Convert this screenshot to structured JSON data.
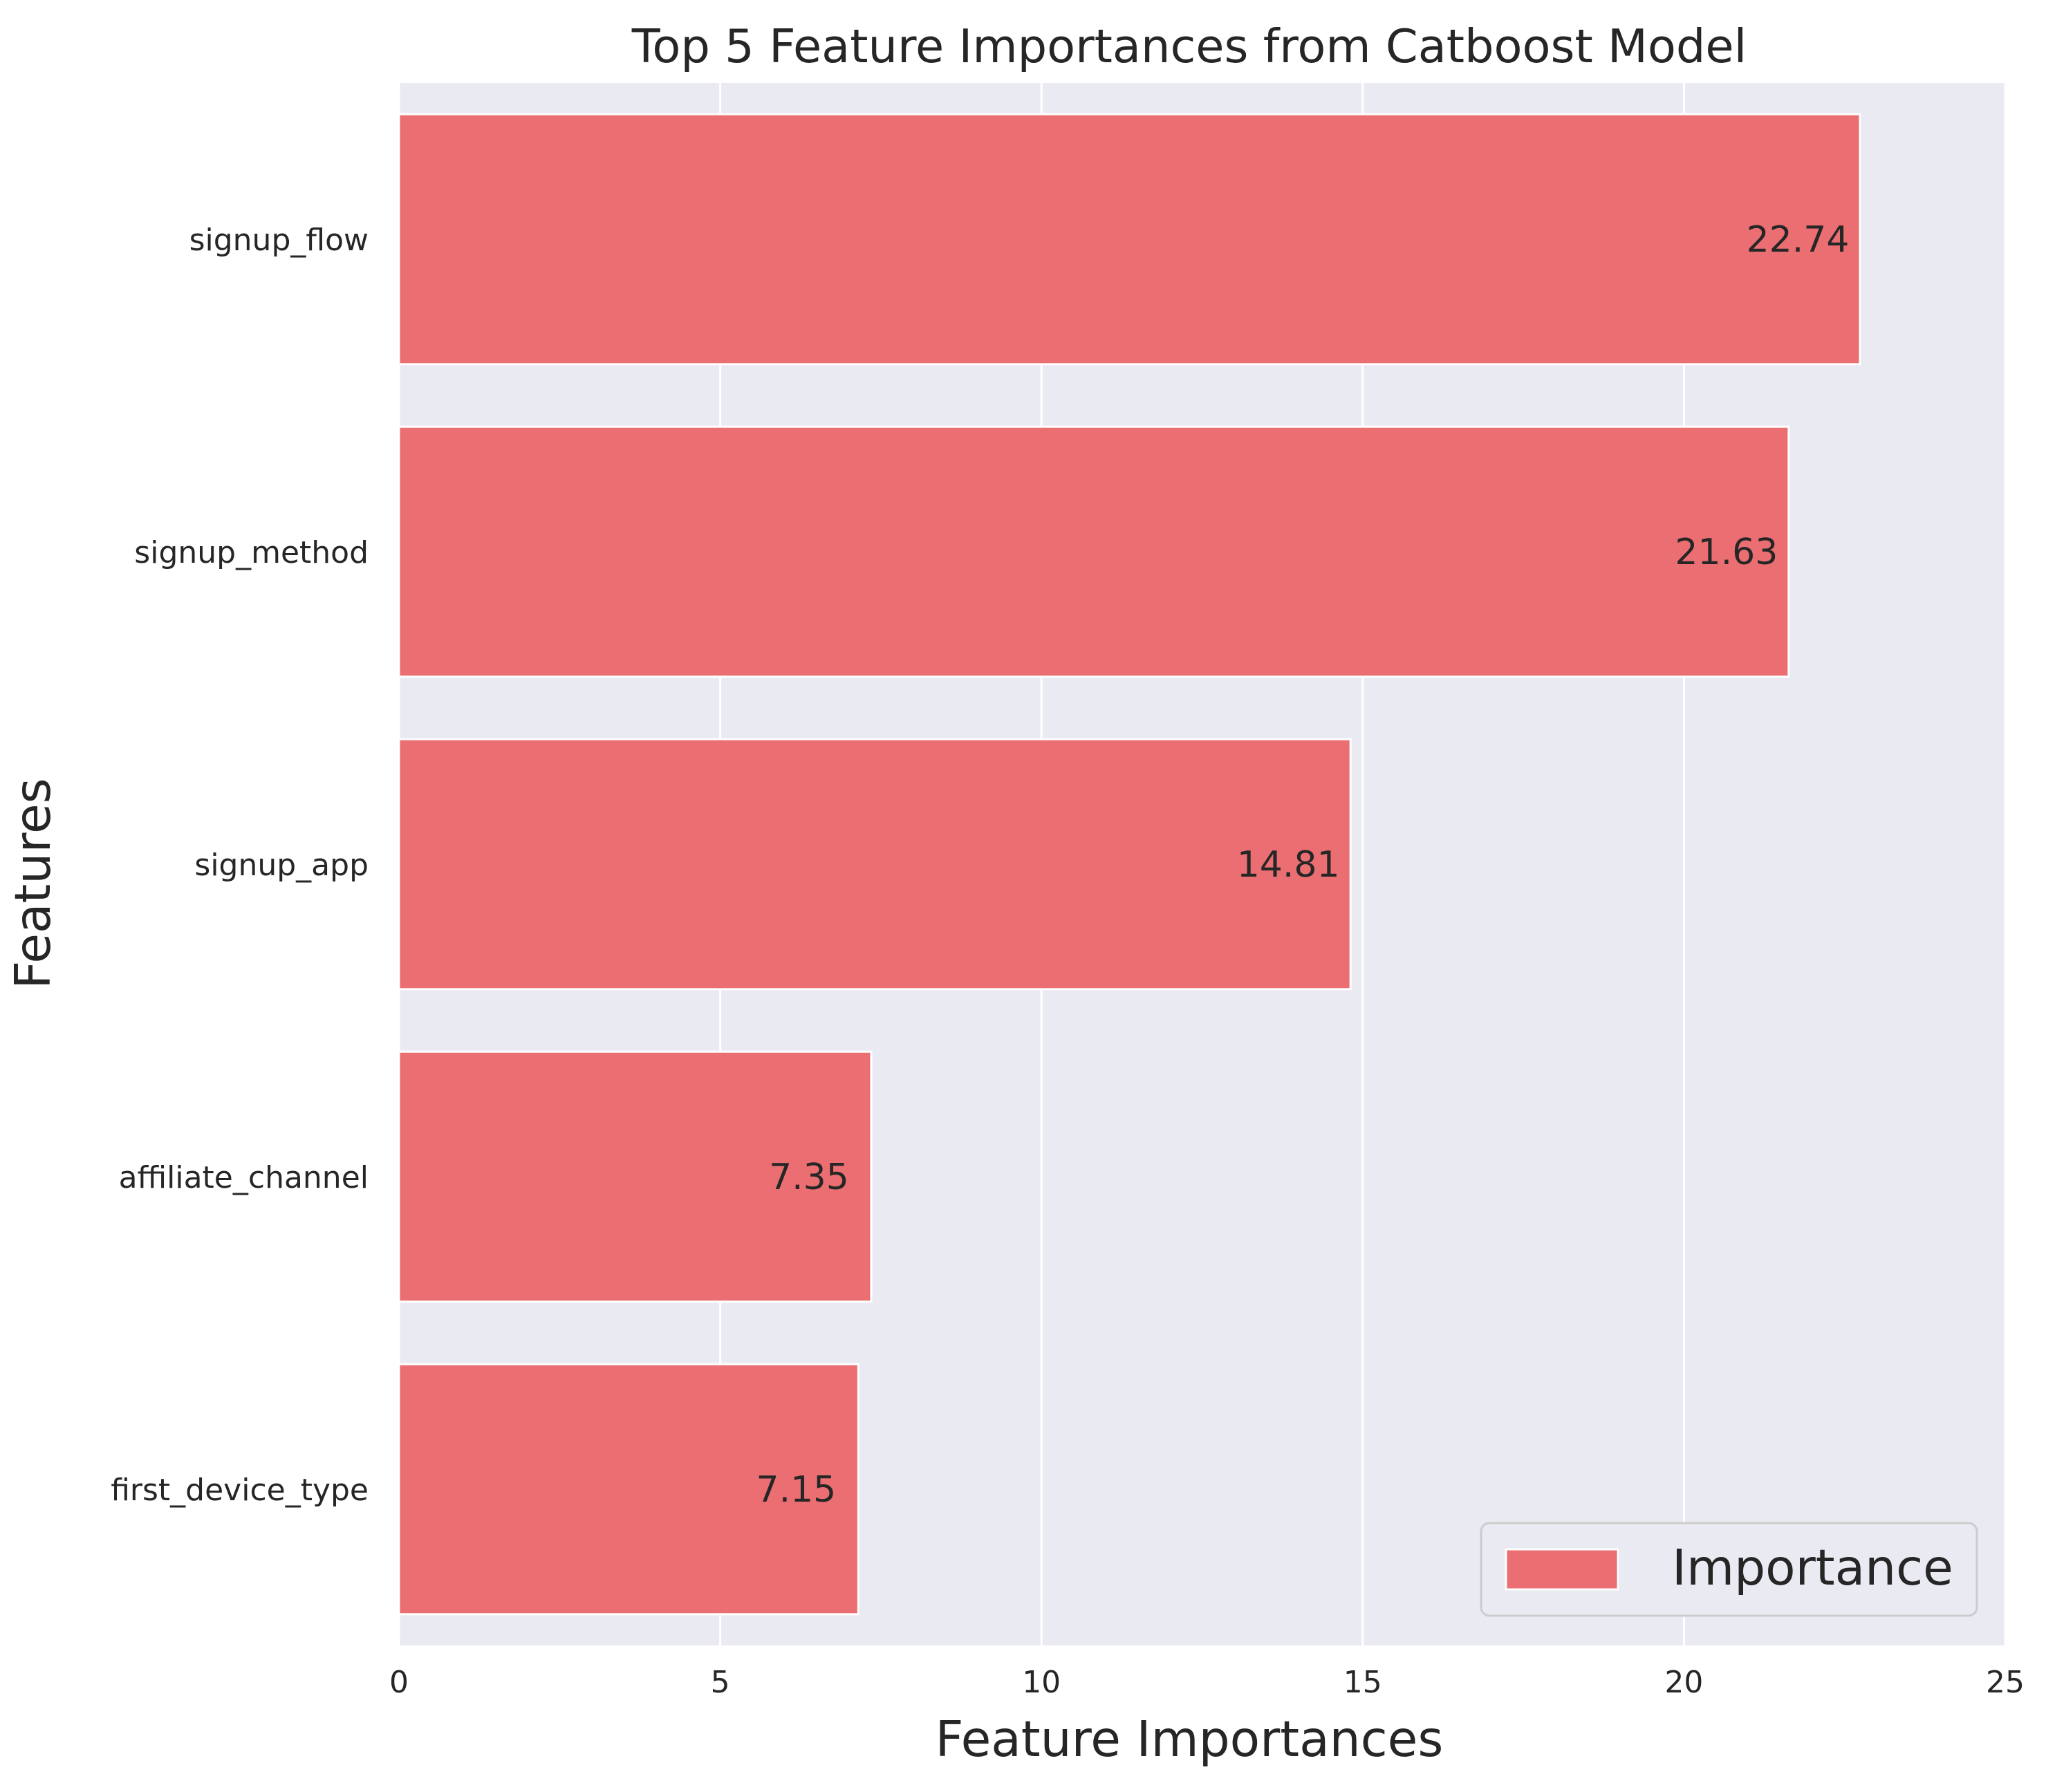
{
  "chart_data": {
    "type": "bar",
    "orientation": "horizontal",
    "title": "Top 5 Feature Importances from Catboost Model",
    "xlabel": "Feature Importances",
    "ylabel": "Features",
    "categories": [
      "signup_flow",
      "signup_method",
      "signup_app",
      "affiliate_channel",
      "first_device_type"
    ],
    "series": [
      {
        "name": "Importance",
        "values": [
          22.74,
          21.63,
          14.81,
          7.35,
          7.15
        ],
        "value_labels": [
          "22.74",
          "21.63",
          "14.81",
          "7.35",
          "7.15"
        ],
        "color": "#eb6f72"
      }
    ],
    "xlim": [
      0,
      25
    ],
    "xticks": [
      0,
      5,
      10,
      15,
      20,
      25
    ],
    "xtick_labels": [
      "0",
      "5",
      "10",
      "15",
      "20",
      "25"
    ],
    "grid": true,
    "legend": "bottom-right",
    "background_color": "#eaeaf2"
  }
}
